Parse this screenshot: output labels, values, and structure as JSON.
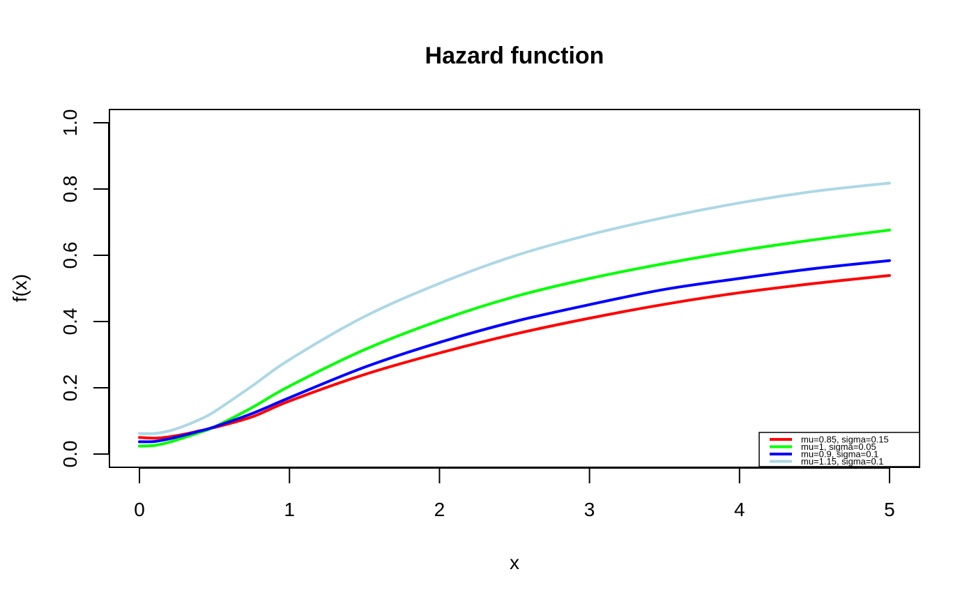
{
  "chart_data": {
    "type": "line",
    "title": "Hazard function",
    "xlabel": "x",
    "ylabel": "f(x)",
    "xlim": [
      -0.2,
      5.2
    ],
    "ylim": [
      -0.04,
      1.04
    ],
    "x_ticks": [
      0,
      1,
      2,
      3,
      4,
      5
    ],
    "x_tick_labels": [
      "0",
      "1",
      "2",
      "3",
      "4",
      "5"
    ],
    "y_ticks": [
      0.0,
      0.2,
      0.4,
      0.6,
      0.8,
      1.0
    ],
    "y_tick_labels": [
      "0.0",
      "0.2",
      "0.4",
      "0.6",
      "0.8",
      "1.0"
    ],
    "grid": false,
    "legend_position": "bottom-right",
    "x": [
      0,
      0.1,
      0.2,
      0.3,
      0.4,
      0.5,
      0.75,
      1.0,
      1.5,
      2.0,
      2.5,
      3.0,
      3.5,
      4.0,
      4.5,
      5.0
    ],
    "series": [
      {
        "name": "mu=0.85, sigma=0.15",
        "color": "#ff0000",
        "values": [
          0.05,
          0.048,
          0.052,
          0.06,
          0.07,
          0.08,
          0.112,
          0.16,
          0.24,
          0.305,
          0.362,
          0.41,
          0.452,
          0.487,
          0.515,
          0.539
        ]
      },
      {
        "name": "mu=1, sigma=0.05",
        "color": "#00ff00",
        "values": [
          0.024,
          0.026,
          0.036,
          0.05,
          0.065,
          0.082,
          0.14,
          0.205,
          0.315,
          0.403,
          0.475,
          0.53,
          0.575,
          0.614,
          0.647,
          0.676
        ]
      },
      {
        "name": "mu=0.9, sigma=0.1",
        "color": "#0000ff",
        "values": [
          0.037,
          0.038,
          0.046,
          0.057,
          0.069,
          0.082,
          0.122,
          0.17,
          0.262,
          0.337,
          0.4,
          0.451,
          0.497,
          0.53,
          0.56,
          0.584
        ]
      },
      {
        "name": "mu=1.15, sigma=0.1",
        "color": "#add8e6",
        "values": [
          0.062,
          0.062,
          0.07,
          0.085,
          0.104,
          0.128,
          0.205,
          0.285,
          0.415,
          0.515,
          0.598,
          0.662,
          0.714,
          0.758,
          0.793,
          0.818
        ]
      }
    ]
  }
}
